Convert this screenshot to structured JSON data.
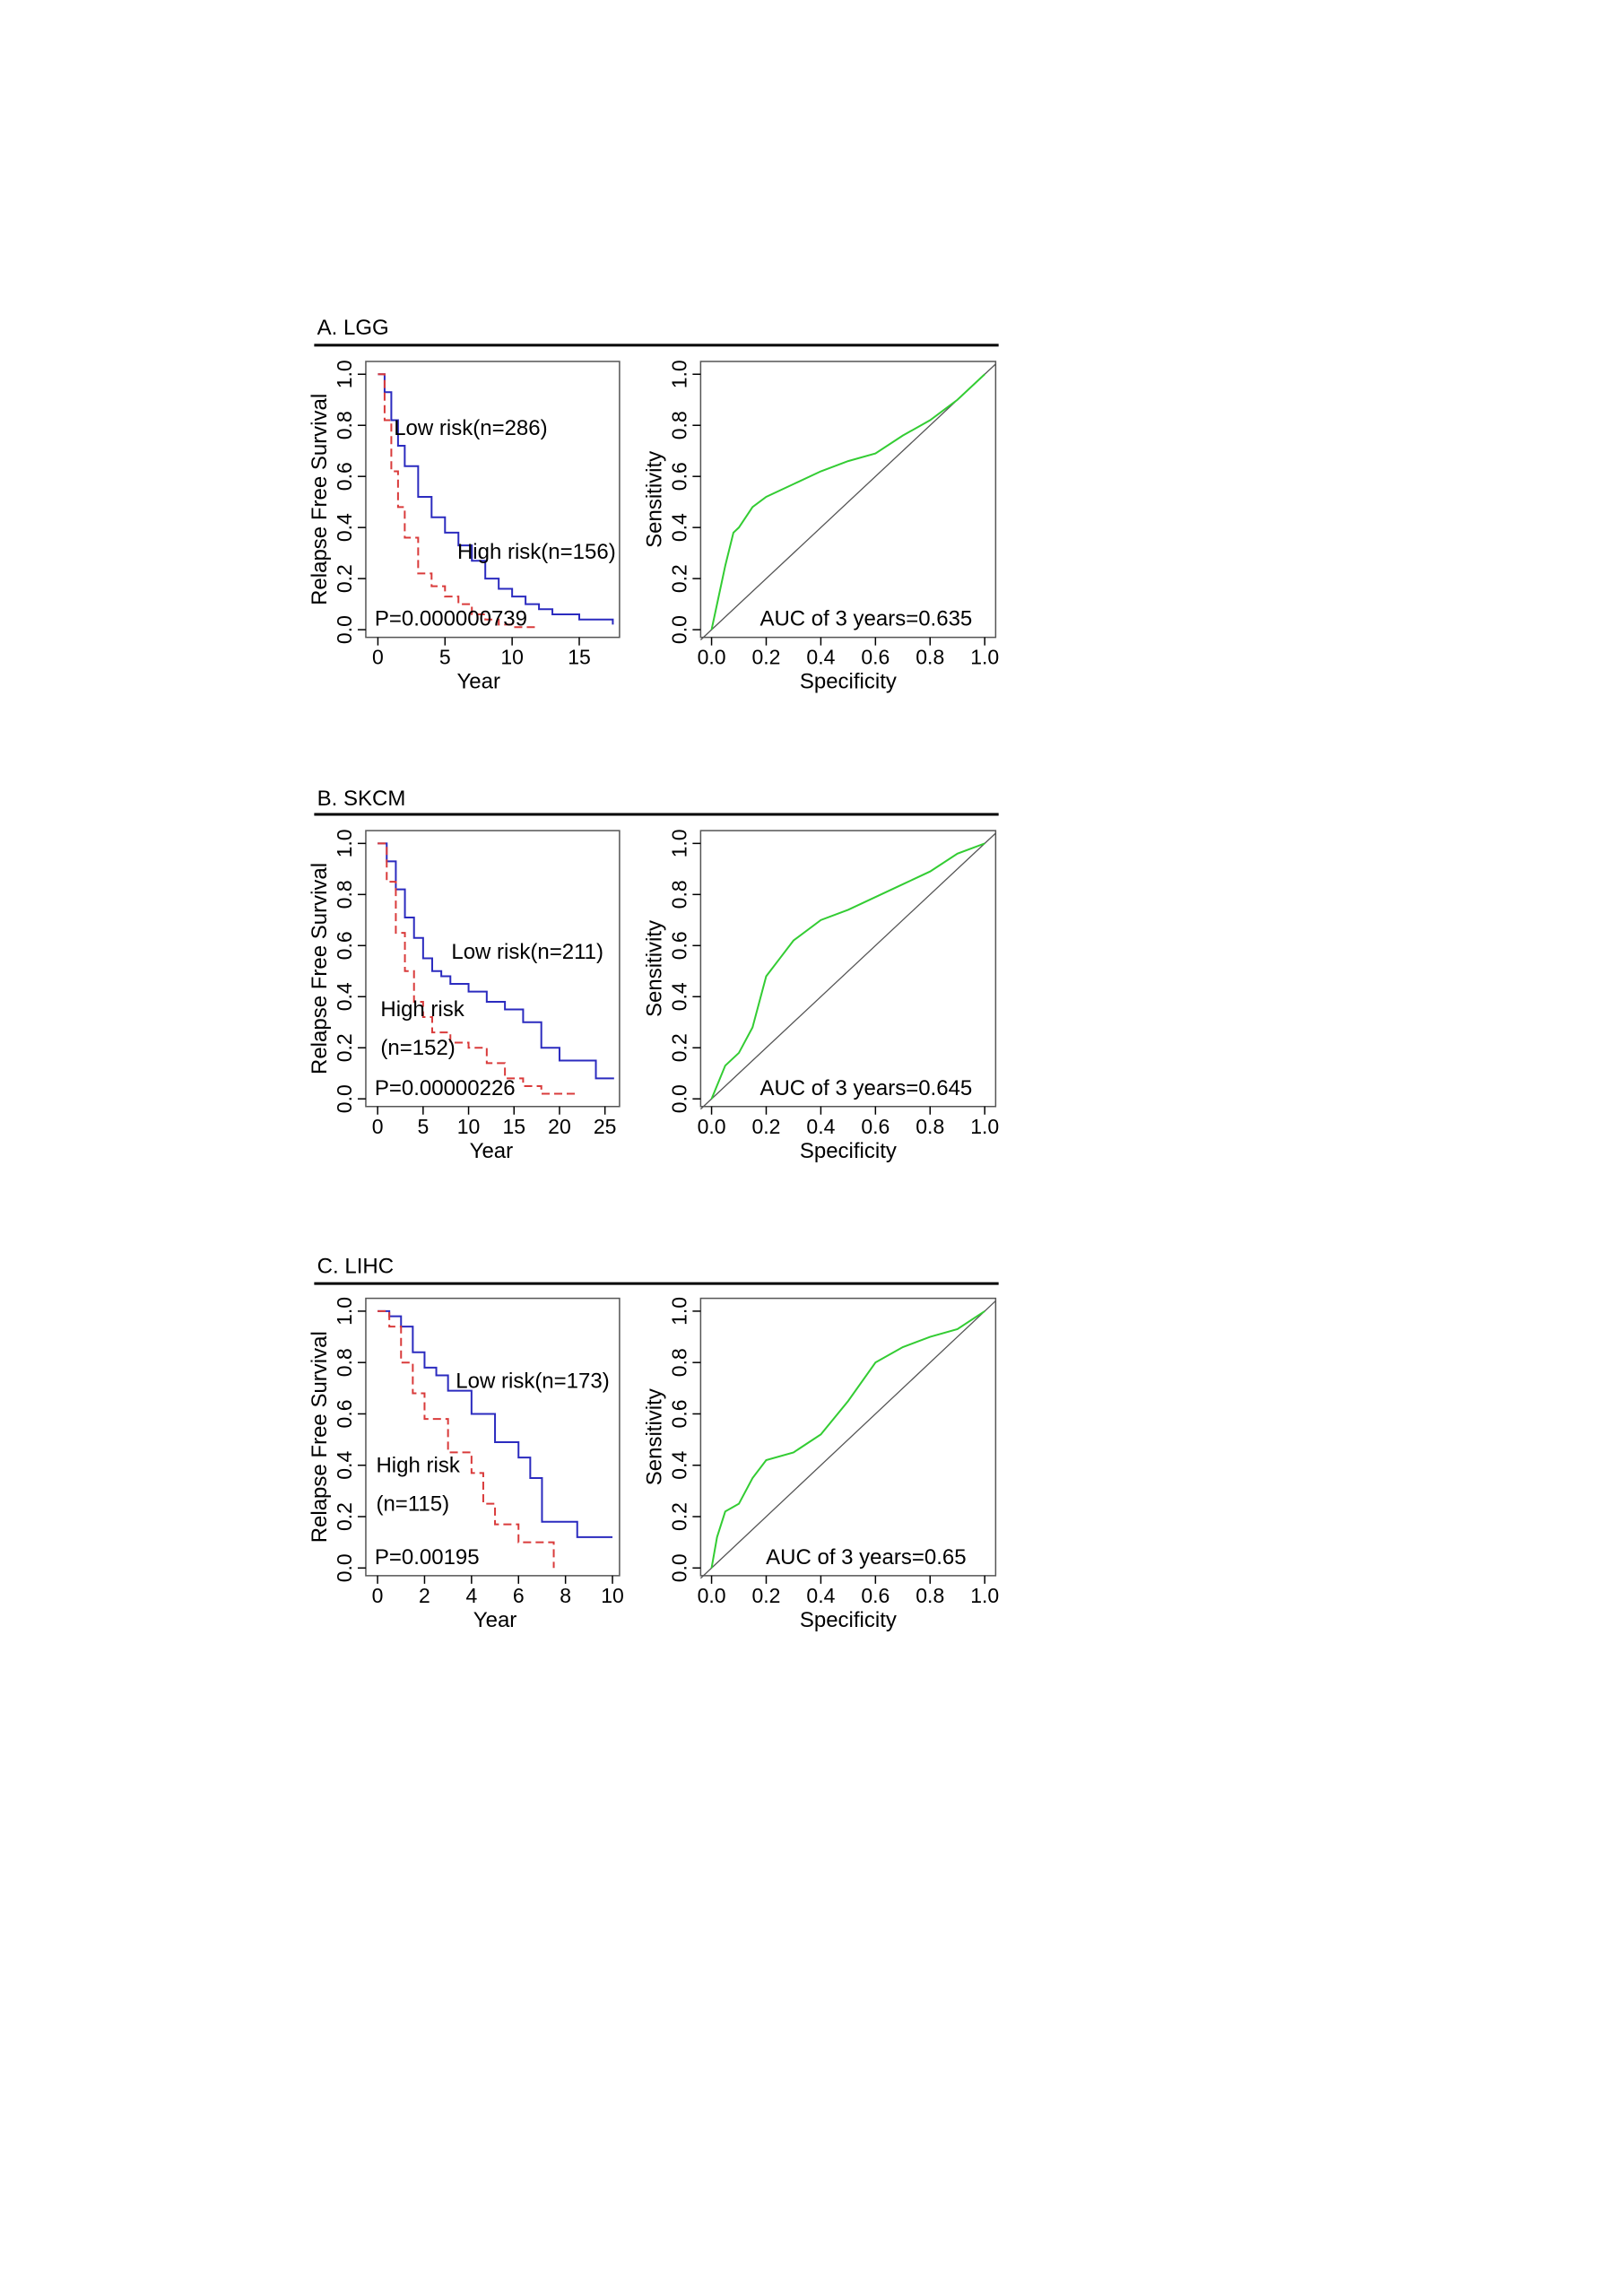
{
  "panels": [
    "A. LGG",
    "B. SKCM",
    "C. LIHC"
  ],
  "chart_data": [
    {
      "type": "line",
      "step": true,
      "xlabel": "Year",
      "ylabel": "Relapse Free Survival",
      "xlim": [
        -0.9,
        18
      ],
      "xticks": [
        0,
        5,
        10,
        15
      ],
      "ylim": [
        -0.03,
        1.05
      ],
      "yticks": [
        {
          "value": 0,
          "label": "0.0"
        },
        0.2,
        0.4,
        0.6,
        0.8,
        {
          "value": 1,
          "label": "1.0"
        }
      ],
      "annotation": "P=0.000000739",
      "series": [
        {
          "name": "Low risk(n=286)",
          "color": "#2b2bbf",
          "dash": false,
          "x": [
            0,
            0.5,
            1,
            1.5,
            2,
            3,
            4,
            5,
            6,
            7,
            8,
            9,
            10,
            11,
            12,
            13,
            15,
            17.5
          ],
          "values": [
            1,
            0.93,
            0.82,
            0.72,
            0.64,
            0.52,
            0.44,
            0.38,
            0.33,
            0.27,
            0.2,
            0.16,
            0.13,
            0.1,
            0.08,
            0.06,
            0.04,
            0.02
          ]
        },
        {
          "name": "High risk(n=156)",
          "color": "#d93b3b",
          "dash": true,
          "x": [
            0,
            0.5,
            1,
            1.5,
            2,
            3,
            4,
            5,
            6,
            7,
            8,
            9,
            10,
            12
          ],
          "values": [
            1,
            0.82,
            0.62,
            0.48,
            0.36,
            0.22,
            0.17,
            0.13,
            0.1,
            0.06,
            0.04,
            0.02,
            0.01,
            0.01
          ]
        }
      ]
    },
    {
      "type": "line",
      "step": false,
      "diagonal": true,
      "xlabel": "Specificity",
      "ylabel": "Sensitivity",
      "xlim": [
        -0.04,
        1.04
      ],
      "xticks": [
        {
          "value": 0,
          "label": "0.0"
        },
        0.2,
        0.4,
        0.6,
        0.8,
        {
          "value": 1,
          "label": "1.0"
        }
      ],
      "ylim": [
        -0.03,
        1.05
      ],
      "yticks": [
        {
          "value": 0,
          "label": "0.0"
        },
        0.2,
        0.4,
        0.6,
        0.8,
        {
          "value": 1,
          "label": "1.0"
        }
      ],
      "annotation": "AUC of 3 years=0.635",
      "series": [
        {
          "color": "#33cc33",
          "dash": false,
          "x": [
            0,
            0.02,
            0.05,
            0.08,
            0.1,
            0.15,
            0.2,
            0.3,
            0.4,
            0.5,
            0.6,
            0.7,
            0.8,
            0.9,
            1
          ],
          "values": [
            0,
            0.1,
            0.25,
            0.38,
            0.4,
            0.48,
            0.52,
            0.57,
            0.62,
            0.66,
            0.69,
            0.76,
            0.82,
            0.9,
            1
          ]
        }
      ]
    },
    {
      "type": "line",
      "step": true,
      "xlabel": "Year",
      "ylabel": "Relapse Free Survival",
      "xlim": [
        -1.3,
        26.6
      ],
      "xticks": [
        0,
        5,
        10,
        15,
        20,
        25
      ],
      "ylim": [
        -0.03,
        1.05
      ],
      "yticks": [
        {
          "value": 0,
          "label": "0.0"
        },
        0.2,
        0.4,
        0.6,
        0.8,
        {
          "value": 1,
          "label": "1.0"
        }
      ],
      "annotation": "P=0.00000226",
      "series": [
        {
          "name": "Low risk(n=211)",
          "color": "#2b2bbf",
          "dash": false,
          "x": [
            0,
            1,
            2,
            3,
            4,
            5,
            6,
            7,
            8,
            10,
            12,
            14,
            16,
            18,
            20,
            22,
            24,
            26
          ],
          "values": [
            1,
            0.93,
            0.82,
            0.71,
            0.63,
            0.55,
            0.5,
            0.48,
            0.45,
            0.42,
            0.38,
            0.35,
            0.3,
            0.2,
            0.15,
            0.15,
            0.08,
            0.08
          ]
        },
        {
          "name": [
            "High risk",
            "(n=152)"
          ],
          "color": "#d93b3b",
          "dash": true,
          "x": [
            0,
            1,
            2,
            3,
            4,
            5,
            6,
            8,
            10,
            12,
            14,
            16,
            18,
            20,
            22
          ],
          "values": [
            1,
            0.85,
            0.65,
            0.5,
            0.38,
            0.32,
            0.26,
            0.22,
            0.2,
            0.14,
            0.08,
            0.05,
            0.02,
            0.02,
            0.02
          ]
        }
      ]
    },
    {
      "type": "line",
      "step": false,
      "diagonal": true,
      "xlabel": "Specificity",
      "ylabel": "Sensitivity",
      "xlim": [
        -0.04,
        1.04
      ],
      "xticks": [
        {
          "value": 0,
          "label": "0.0"
        },
        0.2,
        0.4,
        0.6,
        0.8,
        {
          "value": 1,
          "label": "1.0"
        }
      ],
      "ylim": [
        -0.03,
        1.05
      ],
      "yticks": [
        {
          "value": 0,
          "label": "0.0"
        },
        0.2,
        0.4,
        0.6,
        0.8,
        {
          "value": 1,
          "label": "1.0"
        }
      ],
      "annotation": "AUC of 3 years=0.645",
      "series": [
        {
          "color": "#33cc33",
          "dash": false,
          "x": [
            0,
            0.05,
            0.1,
            0.15,
            0.2,
            0.25,
            0.3,
            0.4,
            0.5,
            0.6,
            0.7,
            0.8,
            0.9,
            1
          ],
          "values": [
            0,
            0.13,
            0.18,
            0.28,
            0.48,
            0.55,
            0.62,
            0.7,
            0.74,
            0.79,
            0.84,
            0.89,
            0.96,
            1
          ]
        }
      ]
    },
    {
      "type": "line",
      "step": true,
      "xlabel": "Year",
      "ylabel": "Relapse Free Survival",
      "xlim": [
        -0.5,
        10.3
      ],
      "xticks": [
        0,
        2,
        4,
        6,
        8,
        10
      ],
      "ylim": [
        -0.03,
        1.05
      ],
      "yticks": [
        {
          "value": 0,
          "label": "0.0"
        },
        0.2,
        0.4,
        0.6,
        0.8,
        {
          "value": 1,
          "label": "1.0"
        }
      ],
      "annotation": "P=0.00195",
      "series": [
        {
          "name": "Low risk(n=173)",
          "color": "#2b2bbf",
          "dash": false,
          "x": [
            0,
            0.5,
            1,
            1.5,
            2,
            2.5,
            3,
            4,
            5,
            6,
            6.5,
            7,
            8,
            8.5,
            10
          ],
          "values": [
            1,
            0.98,
            0.94,
            0.84,
            0.78,
            0.75,
            0.69,
            0.6,
            0.49,
            0.43,
            0.35,
            0.18,
            0.18,
            0.12,
            0.12
          ]
        },
        {
          "name": [
            "High risk",
            "(n=115)"
          ],
          "color": "#d93b3b",
          "dash": true,
          "x": [
            0,
            0.5,
            1,
            1.5,
            2,
            3,
            4,
            4.5,
            5,
            6,
            7.5
          ],
          "values": [
            1,
            0.94,
            0.8,
            0.68,
            0.58,
            0.45,
            0.37,
            0.25,
            0.17,
            0.1,
            0
          ]
        }
      ]
    },
    {
      "type": "line",
      "step": false,
      "diagonal": true,
      "xlabel": "Specificity",
      "ylabel": "Sensitivity",
      "xlim": [
        -0.04,
        1.04
      ],
      "xticks": [
        {
          "value": 0,
          "label": "0.0"
        },
        0.2,
        0.4,
        0.6,
        0.8,
        {
          "value": 1,
          "label": "1.0"
        }
      ],
      "ylim": [
        -0.03,
        1.05
      ],
      "yticks": [
        {
          "value": 0,
          "label": "0.0"
        },
        0.2,
        0.4,
        0.6,
        0.8,
        {
          "value": 1,
          "label": "1.0"
        }
      ],
      "annotation": "AUC of 3 years=0.65",
      "series": [
        {
          "color": "#33cc33",
          "dash": false,
          "x": [
            0,
            0.02,
            0.05,
            0.1,
            0.15,
            0.2,
            0.3,
            0.4,
            0.5,
            0.6,
            0.7,
            0.8,
            0.9,
            1
          ],
          "values": [
            0,
            0.12,
            0.22,
            0.25,
            0.35,
            0.42,
            0.45,
            0.52,
            0.65,
            0.8,
            0.86,
            0.9,
            0.93,
            1
          ]
        }
      ]
    }
  ]
}
